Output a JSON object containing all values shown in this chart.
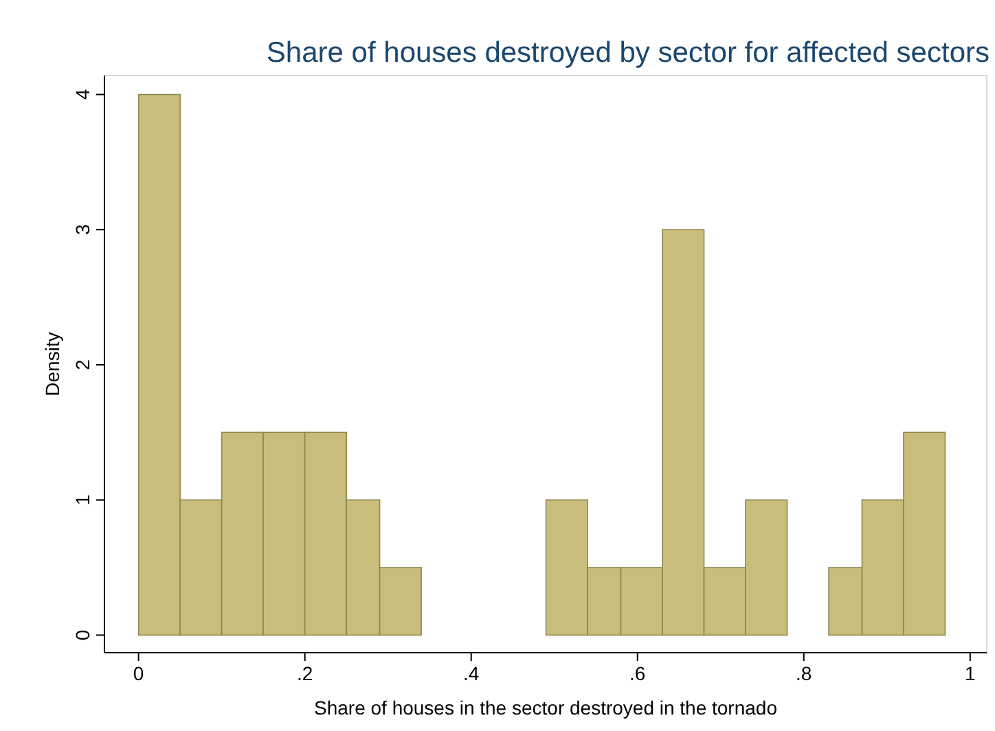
{
  "chart_data": {
    "type": "histogram",
    "title": "Share of houses destroyed by sector for affected sectors",
    "xlabel": "Share of houses in the sector destroyed in the tornado",
    "ylabel": "Density",
    "bins": [
      0,
      0.05,
      0.1,
      0.15,
      0.2,
      0.25,
      0.29,
      0.34,
      0.49,
      0.54,
      0.58,
      0.63,
      0.68,
      0.73,
      0.78,
      0.83,
      0.87,
      0.92,
      0.97
    ],
    "values": [
      4,
      1,
      1.5,
      1.5,
      1.5,
      1,
      0.5,
      0,
      1,
      0.5,
      0.5,
      3,
      0.5,
      1,
      0,
      0.5,
      1,
      1.5
    ],
    "color": "#c9bd7b",
    "xlim": [
      -0.041,
      1.02
    ],
    "ylim": [
      -0.13,
      4.14
    ],
    "xticks": [
      0,
      {
        "value": 0.2,
        "label": ".2"
      },
      {
        "value": 0.4,
        "label": ".4"
      },
      {
        "value": 0.6,
        "label": ".6"
      },
      {
        "value": 0.8,
        "label": ".8"
      },
      1
    ],
    "yticks": [
      0,
      1,
      2,
      3,
      4
    ],
    "grid": false
  }
}
